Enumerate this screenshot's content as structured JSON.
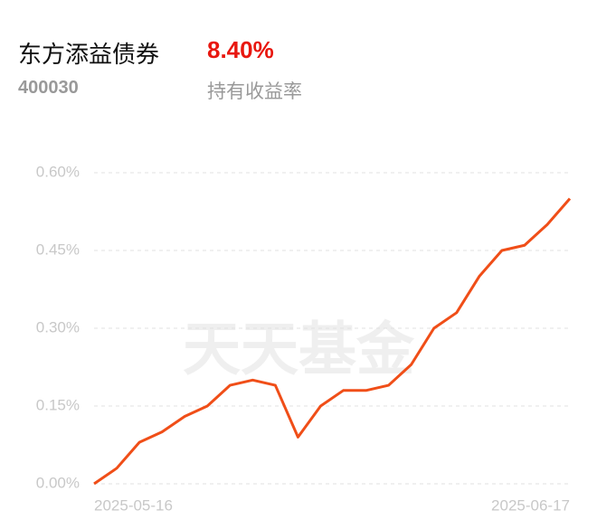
{
  "header": {
    "name": "东方添益债券",
    "return": "8.40%",
    "code": "400030",
    "return_label": "持有收益率"
  },
  "chart_data": {
    "type": "line",
    "watermark": "天天基金",
    "categories": [
      "2025-05-16",
      null,
      null,
      null,
      null,
      null,
      null,
      null,
      null,
      null,
      null,
      null,
      null,
      null,
      null,
      null,
      null,
      null,
      null,
      null,
      null,
      "2025-06-17"
    ],
    "series": [
      {
        "color": "#f04e18",
        "values": [
          0,
          0.03,
          0.08,
          0.1,
          0.13,
          0.15,
          0.19,
          0.2,
          0.19,
          0.09,
          0.15,
          0.18,
          0.18,
          0.19,
          0.23,
          0.3,
          0.33,
          0.4,
          0.45,
          0.46,
          0.5,
          0.55
        ]
      }
    ],
    "ylim": [
      0,
      0.6
    ],
    "yticks": [
      {
        "value": 0,
        "label": "0.00%"
      },
      {
        "value": 0.15,
        "label": "0.15%"
      },
      {
        "value": 0.3,
        "label": "0.30%"
      },
      {
        "value": 0.45,
        "label": "0.45%"
      },
      {
        "value": 0.6,
        "label": "0.60%"
      }
    ],
    "grid": true
  }
}
